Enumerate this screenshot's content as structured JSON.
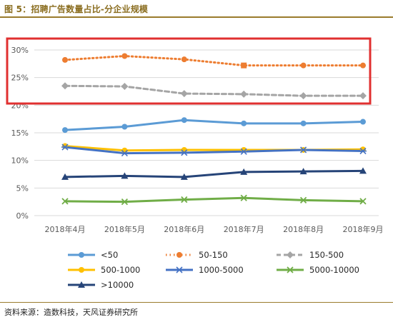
{
  "figure_title": "图 5：招聘广告数量占比-分企业规模",
  "source_text": "资料来源：造数科技，天风证券研究所",
  "colors": {
    "title": "#8a6d1f",
    "rule": "#9a7b2c",
    "highlight_box": "#e03030",
    "grid": "#d9d9d9",
    "axis_text": "#595959"
  },
  "chart_data": {
    "type": "line",
    "categories": [
      "2018年4月",
      "2018年5月",
      "2018年6月",
      "2018年7月",
      "2018年8月",
      "2018年9月"
    ],
    "ylim": [
      0,
      30
    ],
    "yticks": [
      "0%",
      "5%",
      "10%",
      "15%",
      "20%",
      "25%",
      "30%"
    ],
    "y_unit": "%",
    "grid": true,
    "legend_position": "bottom",
    "series": [
      {
        "name": "<50",
        "color": "#5b9bd5",
        "dash": "solid",
        "marker": "circle",
        "values": [
          15.5,
          16.1,
          17.3,
          16.7,
          16.7,
          17.0
        ]
      },
      {
        "name": "50-150",
        "color": "#ed7d31",
        "dash": "dot",
        "marker": "circle",
        "values": [
          28.2,
          28.9,
          28.3,
          27.2,
          27.2,
          27.2
        ]
      },
      {
        "name": "150-500",
        "color": "#a5a5a5",
        "dash": "dash",
        "marker": "diamond",
        "values": [
          23.5,
          23.4,
          22.1,
          22.0,
          21.7,
          21.7
        ]
      },
      {
        "name": "500-1000",
        "color": "#ffc000",
        "dash": "solid",
        "marker": "circle",
        "values": [
          12.6,
          11.8,
          11.9,
          11.9,
          11.9,
          12.0
        ]
      },
      {
        "name": "1000-5000",
        "color": "#4472c4",
        "dash": "solid",
        "marker": "star",
        "values": [
          12.4,
          11.3,
          11.4,
          11.6,
          11.9,
          11.7
        ]
      },
      {
        "name": "5000-10000",
        "color": "#70ad47",
        "dash": "solid",
        "marker": "x",
        "values": [
          2.6,
          2.5,
          2.9,
          3.2,
          2.8,
          2.6
        ]
      },
      {
        "name": ">10000",
        "color": "#264478",
        "dash": "solid",
        "marker": "triangle",
        "values": [
          7.0,
          7.2,
          7.0,
          7.9,
          8.0,
          8.1
        ]
      }
    ],
    "annotations": [
      {
        "type": "highlight-box",
        "color": "#e03030",
        "covers_series": [
          "50-150",
          "150-500"
        ]
      }
    ]
  }
}
